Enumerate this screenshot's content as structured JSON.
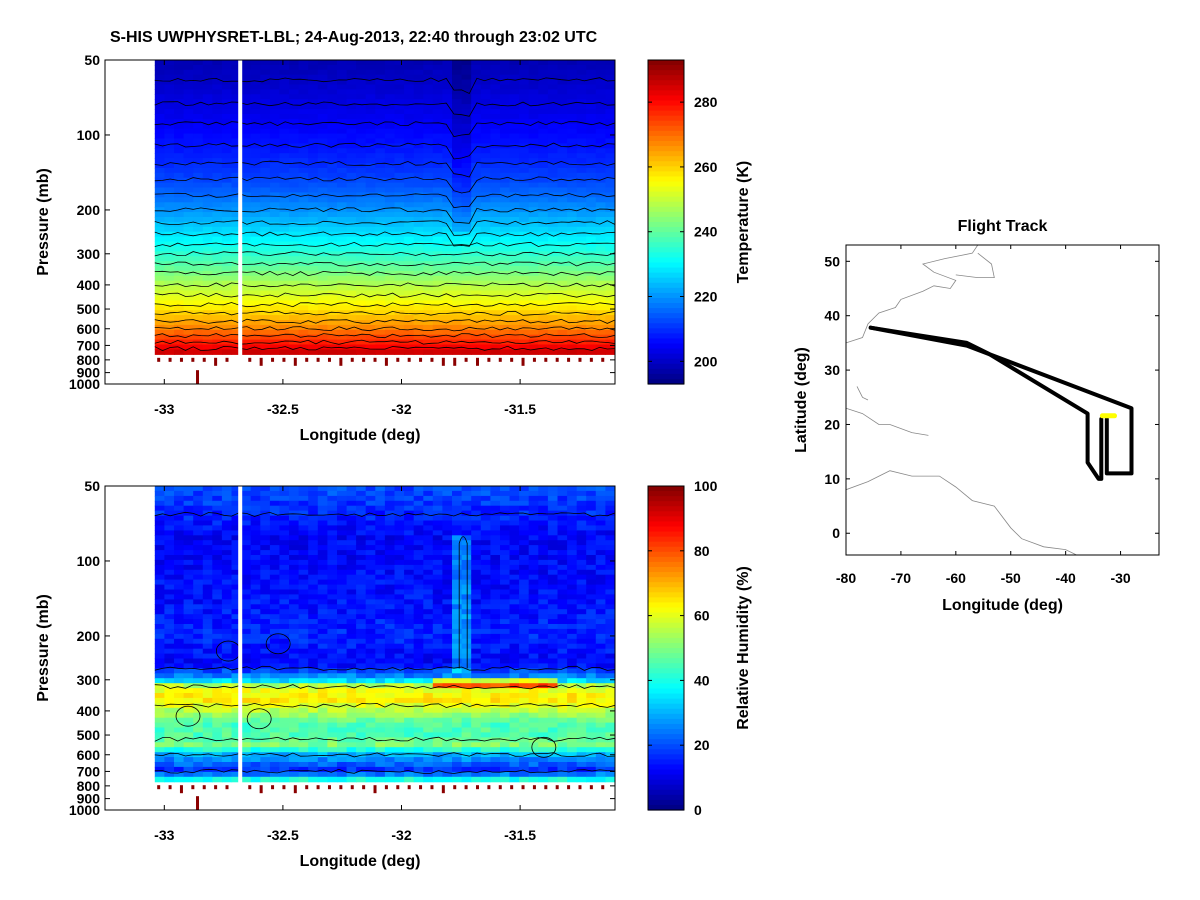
{
  "figure_title": "S-HIS UWPHYSRET-LBL;   24-Aug-2013, 22:40 through 23:02 UTC",
  "chart_data": [
    {
      "type": "heatmap",
      "name": "temperature-cross-section",
      "xlabel": "Longitude (deg)",
      "ylabel": "Pressure (mb)",
      "xlim": [
        -33.25,
        -31.1
      ],
      "ylim": [
        50,
        1000
      ],
      "y_scale": "log",
      "xticks": [
        -33,
        -32.5,
        -32,
        -31.5
      ],
      "xtick_labels": [
        "-33",
        "-32.5",
        "-32",
        "-31.5"
      ],
      "yticks": [
        50,
        100,
        200,
        300,
        400,
        500,
        600,
        700,
        800,
        900,
        1000
      ],
      "ytick_labels": [
        "50",
        "100",
        "200",
        "300",
        "400",
        "500",
        "600",
        "700",
        "800",
        "900",
        "1000"
      ],
      "data_x_range": [
        -33.04,
        -31.1
      ],
      "data_gap_lon": -32.68,
      "field_profile_pressure": [
        50,
        70,
        100,
        150,
        200,
        250,
        300,
        400,
        500,
        600,
        700,
        750
      ],
      "field_profile_value": [
        198,
        202,
        206,
        212,
        220,
        228,
        235,
        248,
        258,
        268,
        280,
        286
      ],
      "feature_lon": -31.74,
      "colorbar": {
        "label": "Temperature (K)",
        "range": [
          193,
          293
        ],
        "ticks": [
          200,
          220,
          240,
          260,
          280
        ],
        "tick_labels": [
          "200",
          "220",
          "240",
          "260",
          "280"
        ]
      }
    },
    {
      "type": "heatmap",
      "name": "relative-humidity-cross-section",
      "xlabel": "Longitude (deg)",
      "ylabel": "Pressure (mb)",
      "xlim": [
        -33.25,
        -31.1
      ],
      "ylim": [
        50,
        1000
      ],
      "y_scale": "log",
      "xticks": [
        -33,
        -32.5,
        -32,
        -31.5
      ],
      "xtick_labels": [
        "-33",
        "-32.5",
        "-32",
        "-31.5"
      ],
      "yticks": [
        50,
        100,
        200,
        300,
        400,
        500,
        600,
        700,
        800,
        900,
        1000
      ],
      "ytick_labels": [
        "50",
        "100",
        "200",
        "300",
        "400",
        "500",
        "600",
        "700",
        "800",
        "900",
        "1000"
      ],
      "data_x_range": [
        -33.04,
        -31.1
      ],
      "data_gap_lon": -32.68,
      "field_profile_pressure": [
        50,
        80,
        150,
        200,
        260,
        300,
        320,
        360,
        400,
        450,
        500,
        550,
        600,
        700,
        750
      ],
      "field_profile_value": [
        20,
        12,
        14,
        16,
        12,
        30,
        60,
        65,
        55,
        45,
        45,
        50,
        30,
        15,
        40
      ],
      "colorbar": {
        "label": "Relative Humidity (%)",
        "range": [
          0,
          100
        ],
        "ticks": [
          0,
          20,
          40,
          60,
          80,
          100
        ],
        "tick_labels": [
          "0",
          "20",
          "40",
          "60",
          "80",
          "100"
        ]
      }
    },
    {
      "type": "line",
      "name": "flight-track",
      "title": "Flight Track",
      "xlabel": "Longitude (deg)",
      "ylabel": "Latitude (deg)",
      "xlim": [
        -80,
        -23
      ],
      "ylim": [
        -4,
        53
      ],
      "xticks": [
        -80,
        -70,
        -60,
        -50,
        -40,
        -30
      ],
      "xtick_labels": [
        "-80",
        "-70",
        "-60",
        "-50",
        "-40",
        "-30"
      ],
      "yticks": [
        0,
        10,
        20,
        30,
        40,
        50
      ],
      "ytick_labels": [
        "0",
        "10",
        "20",
        "30",
        "40",
        "50"
      ],
      "track_color": "#000000",
      "highlight_color": "#ffff00",
      "series": [
        {
          "name": "outbound",
          "x": [
            -75.5,
            -58,
            -54,
            -36,
            -36,
            -34,
            -33.5,
            -33.5
          ],
          "y": [
            37.8,
            35,
            33,
            22,
            13,
            10,
            10,
            21
          ]
        },
        {
          "name": "return",
          "x": [
            -32.5,
            -32.5,
            -30,
            -28,
            -28,
            -58,
            -75.5
          ],
          "y": [
            21,
            11,
            11,
            11,
            23,
            34.5,
            37.8
          ]
        },
        {
          "name": "current-segment",
          "x": [
            -33.3,
            -31.1
          ],
          "y": [
            21.6,
            21.6
          ]
        }
      ]
    }
  ]
}
